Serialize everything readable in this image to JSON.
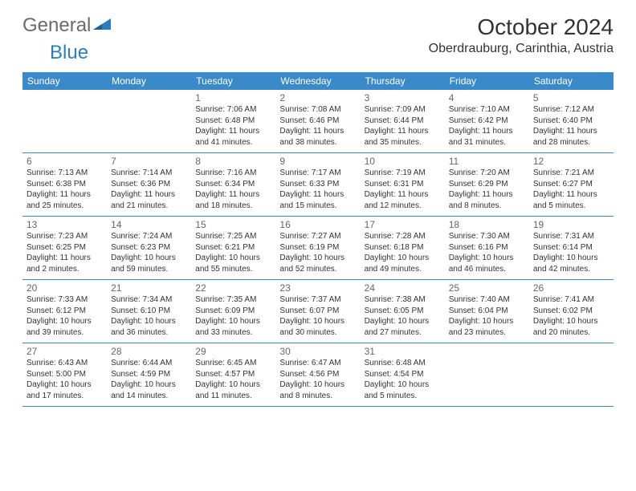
{
  "logo": {
    "text1": "General",
    "text2": "Blue"
  },
  "header": {
    "month_year": "October 2024",
    "location": "Oberdrauburg, Carinthia, Austria"
  },
  "colors": {
    "header_bg": "#3a8ac9",
    "header_text": "#ffffff",
    "cell_border": "#3a8ac9",
    "body_text": "#333333",
    "daynum_text": "#666666",
    "logo_general": "#6a6a6a",
    "logo_blue": "#2a7dbf",
    "background": "#ffffff"
  },
  "weekdays": [
    "Sunday",
    "Monday",
    "Tuesday",
    "Wednesday",
    "Thursday",
    "Friday",
    "Saturday"
  ],
  "days": [
    {
      "day": 1,
      "sunrise": "7:06 AM",
      "sunset": "6:48 PM",
      "daylight": "11 hours and 41 minutes."
    },
    {
      "day": 2,
      "sunrise": "7:08 AM",
      "sunset": "6:46 PM",
      "daylight": "11 hours and 38 minutes."
    },
    {
      "day": 3,
      "sunrise": "7:09 AM",
      "sunset": "6:44 PM",
      "daylight": "11 hours and 35 minutes."
    },
    {
      "day": 4,
      "sunrise": "7:10 AM",
      "sunset": "6:42 PM",
      "daylight": "11 hours and 31 minutes."
    },
    {
      "day": 5,
      "sunrise": "7:12 AM",
      "sunset": "6:40 PM",
      "daylight": "11 hours and 28 minutes."
    },
    {
      "day": 6,
      "sunrise": "7:13 AM",
      "sunset": "6:38 PM",
      "daylight": "11 hours and 25 minutes."
    },
    {
      "day": 7,
      "sunrise": "7:14 AM",
      "sunset": "6:36 PM",
      "daylight": "11 hours and 21 minutes."
    },
    {
      "day": 8,
      "sunrise": "7:16 AM",
      "sunset": "6:34 PM",
      "daylight": "11 hours and 18 minutes."
    },
    {
      "day": 9,
      "sunrise": "7:17 AM",
      "sunset": "6:33 PM",
      "daylight": "11 hours and 15 minutes."
    },
    {
      "day": 10,
      "sunrise": "7:19 AM",
      "sunset": "6:31 PM",
      "daylight": "11 hours and 12 minutes."
    },
    {
      "day": 11,
      "sunrise": "7:20 AM",
      "sunset": "6:29 PM",
      "daylight": "11 hours and 8 minutes."
    },
    {
      "day": 12,
      "sunrise": "7:21 AM",
      "sunset": "6:27 PM",
      "daylight": "11 hours and 5 minutes."
    },
    {
      "day": 13,
      "sunrise": "7:23 AM",
      "sunset": "6:25 PM",
      "daylight": "11 hours and 2 minutes."
    },
    {
      "day": 14,
      "sunrise": "7:24 AM",
      "sunset": "6:23 PM",
      "daylight": "10 hours and 59 minutes."
    },
    {
      "day": 15,
      "sunrise": "7:25 AM",
      "sunset": "6:21 PM",
      "daylight": "10 hours and 55 minutes."
    },
    {
      "day": 16,
      "sunrise": "7:27 AM",
      "sunset": "6:19 PM",
      "daylight": "10 hours and 52 minutes."
    },
    {
      "day": 17,
      "sunrise": "7:28 AM",
      "sunset": "6:18 PM",
      "daylight": "10 hours and 49 minutes."
    },
    {
      "day": 18,
      "sunrise": "7:30 AM",
      "sunset": "6:16 PM",
      "daylight": "10 hours and 46 minutes."
    },
    {
      "day": 19,
      "sunrise": "7:31 AM",
      "sunset": "6:14 PM",
      "daylight": "10 hours and 42 minutes."
    },
    {
      "day": 20,
      "sunrise": "7:33 AM",
      "sunset": "6:12 PM",
      "daylight": "10 hours and 39 minutes."
    },
    {
      "day": 21,
      "sunrise": "7:34 AM",
      "sunset": "6:10 PM",
      "daylight": "10 hours and 36 minutes."
    },
    {
      "day": 22,
      "sunrise": "7:35 AM",
      "sunset": "6:09 PM",
      "daylight": "10 hours and 33 minutes."
    },
    {
      "day": 23,
      "sunrise": "7:37 AM",
      "sunset": "6:07 PM",
      "daylight": "10 hours and 30 minutes."
    },
    {
      "day": 24,
      "sunrise": "7:38 AM",
      "sunset": "6:05 PM",
      "daylight": "10 hours and 27 minutes."
    },
    {
      "day": 25,
      "sunrise": "7:40 AM",
      "sunset": "6:04 PM",
      "daylight": "10 hours and 23 minutes."
    },
    {
      "day": 26,
      "sunrise": "7:41 AM",
      "sunset": "6:02 PM",
      "daylight": "10 hours and 20 minutes."
    },
    {
      "day": 27,
      "sunrise": "6:43 AM",
      "sunset": "5:00 PM",
      "daylight": "10 hours and 17 minutes."
    },
    {
      "day": 28,
      "sunrise": "6:44 AM",
      "sunset": "4:59 PM",
      "daylight": "10 hours and 14 minutes."
    },
    {
      "day": 29,
      "sunrise": "6:45 AM",
      "sunset": "4:57 PM",
      "daylight": "10 hours and 11 minutes."
    },
    {
      "day": 30,
      "sunrise": "6:47 AM",
      "sunset": "4:56 PM",
      "daylight": "10 hours and 8 minutes."
    },
    {
      "day": 31,
      "sunrise": "6:48 AM",
      "sunset": "4:54 PM",
      "daylight": "10 hours and 5 minutes."
    }
  ],
  "labels": {
    "sunrise": "Sunrise:",
    "sunset": "Sunset:",
    "daylight": "Daylight:"
  },
  "layout": {
    "start_weekday_index": 2,
    "days_in_month": 31
  }
}
